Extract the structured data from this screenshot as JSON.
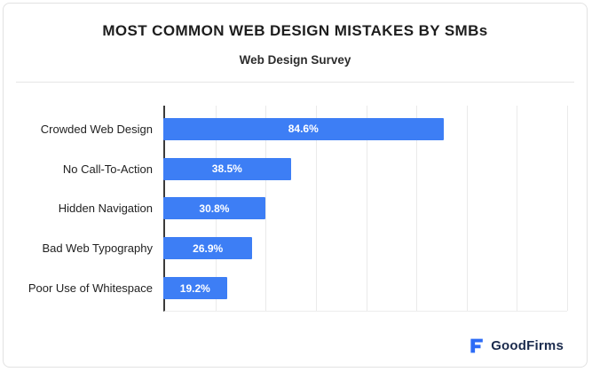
{
  "header": {
    "title": "MOST COMMON WEB DESIGN MISTAKES BY SMBs",
    "subtitle": "Web Design Survey"
  },
  "chart_data": {
    "type": "bar",
    "orientation": "horizontal",
    "title": "MOST COMMON WEB DESIGN MISTAKES BY SMBs",
    "subtitle": "Web Design Survey",
    "categories": [
      "Crowded Web Design",
      "No Call-To-Action",
      "Hidden Navigation",
      "Bad Web Typography",
      "Poor Use of Whitespace"
    ],
    "values": [
      84.6,
      38.5,
      30.8,
      26.9,
      19.2
    ],
    "value_labels": [
      "84.6%",
      "38.5%",
      "30.8%",
      "26.9%",
      "19.2%"
    ],
    "xlabel": "",
    "ylabel": "",
    "xlim": [
      0,
      122
    ],
    "gridline_count": 8,
    "grid": true,
    "bar_color": "#3D7EF5",
    "legend": "none"
  },
  "footer": {
    "brand": "GoodFirms",
    "brand_color": "#1B2B4D",
    "icon_color": "#2D6CF6"
  }
}
